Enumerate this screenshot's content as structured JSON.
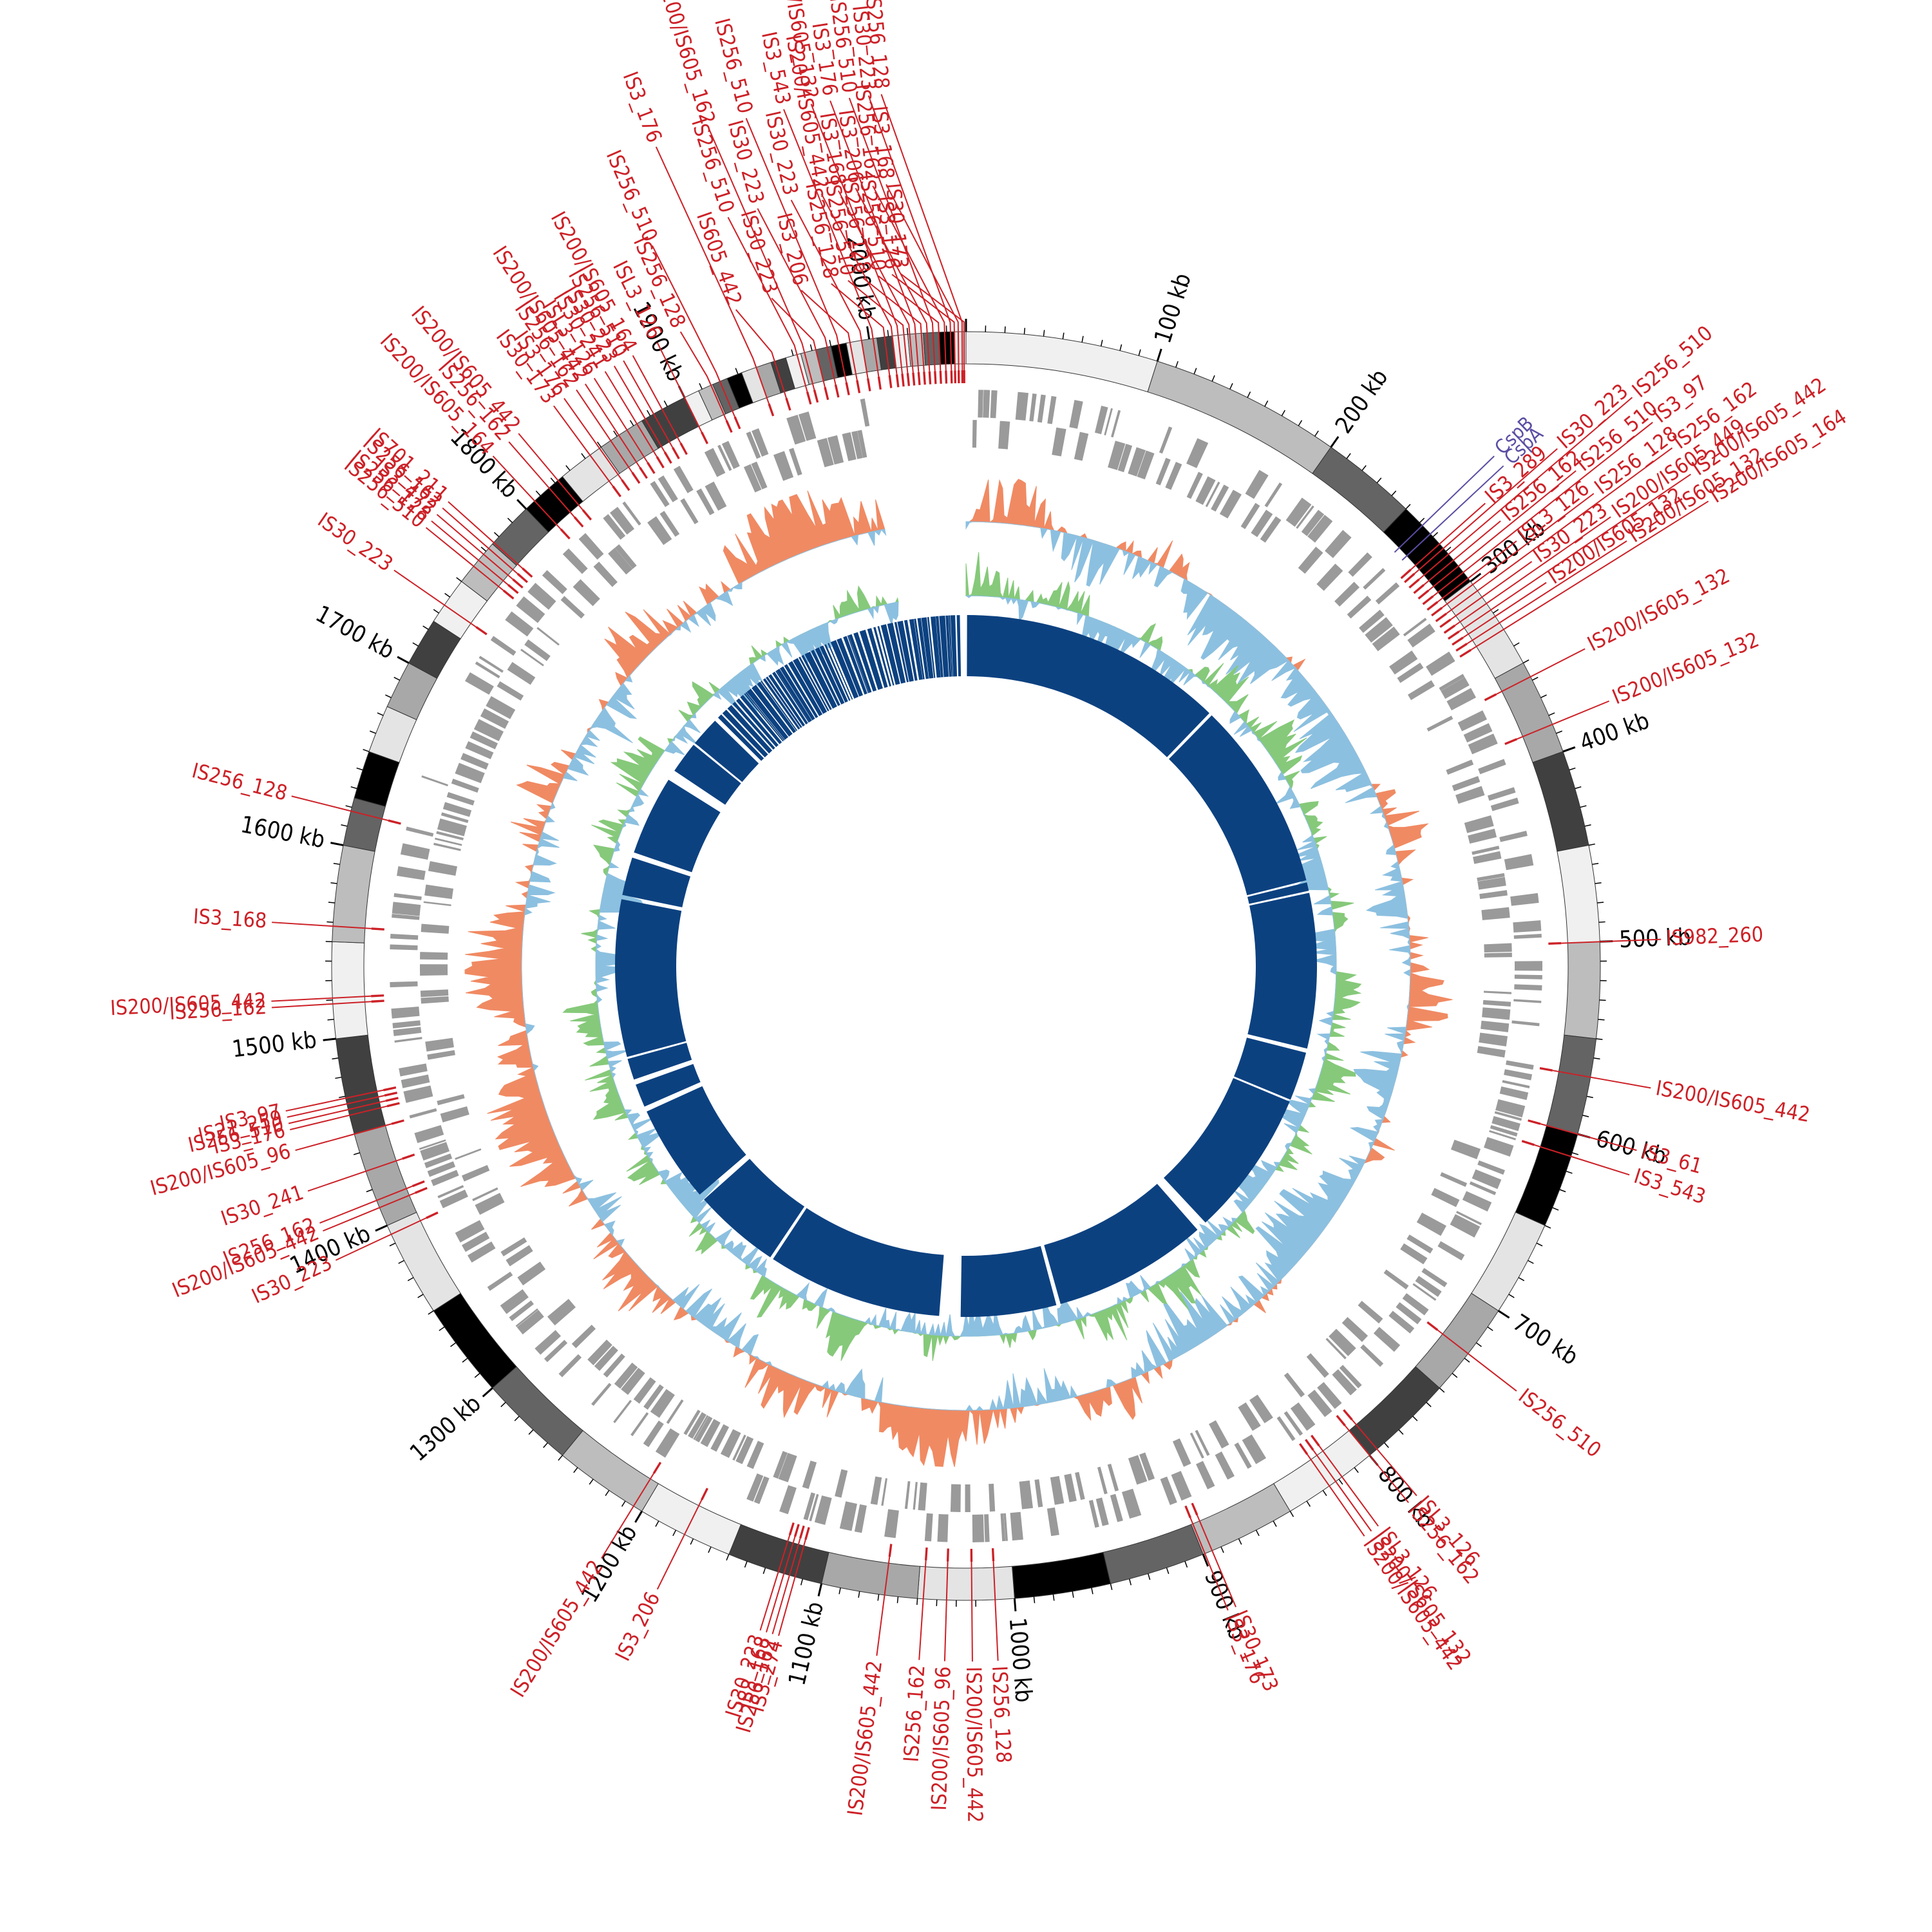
{
  "diagram": {
    "type": "circular-genome-map",
    "genome_length_kb": 2050,
    "colors": {
      "is_element": "#cc2127",
      "gene_label": "#5a4ea3",
      "cds_track": "#9a9a9a",
      "gc_skew_positive": "#f08a63",
      "gc_skew_negative": "#8cc0e0",
      "gc_content_positive": "#86c97a",
      "gc_content_negative": "#8cc0e0",
      "inner_blocks": "#0c4180",
      "karyotype_shades": [
        "#f0f0f0",
        "#bdbdbd",
        "#646464",
        "#000000",
        "#e4e4e4",
        "#a8a8a8",
        "#404040"
      ]
    },
    "ticks": [
      {
        "kb": 100,
        "label": "100 kb"
      },
      {
        "kb": 200,
        "label": "200 kb"
      },
      {
        "kb": 300,
        "label": "300 kb"
      },
      {
        "kb": 400,
        "label": "400 kb"
      },
      {
        "kb": 500,
        "label": "500 kb"
      },
      {
        "kb": 600,
        "label": "600 kb"
      },
      {
        "kb": 700,
        "label": "700 kb"
      },
      {
        "kb": 800,
        "label": "800 kb"
      },
      {
        "kb": 900,
        "label": "900 kb"
      },
      {
        "kb": 1000,
        "label": "1000 kb"
      },
      {
        "kb": 1100,
        "label": "1100 kb"
      },
      {
        "kb": 1200,
        "label": "1200 kb"
      },
      {
        "kb": 1300,
        "label": "1300 kb"
      },
      {
        "kb": 1400,
        "label": "1400 kb"
      },
      {
        "kb": 1500,
        "label": "1500 kb"
      },
      {
        "kb": 1600,
        "label": "1600 kb"
      },
      {
        "kb": 1700,
        "label": "1700 kb"
      },
      {
        "kb": 1800,
        "label": "1800 kb"
      },
      {
        "kb": 1900,
        "label": "1900 kb"
      },
      {
        "kb": 2000,
        "label": "2000 kb"
      }
    ],
    "gene_labels": [
      {
        "kb": 262,
        "label": "CspB"
      },
      {
        "kb": 268,
        "label": "CspA"
      }
    ],
    "is_elements": [
      {
        "kb": 275,
        "label": "IS3_289"
      },
      {
        "kb": 278,
        "label": "IS30_223"
      },
      {
        "kb": 282,
        "label": "IS256_510"
      },
      {
        "kb": 286,
        "label": "IS256_162"
      },
      {
        "kb": 290,
        "label": "IS256_510"
      },
      {
        "kb": 294,
        "label": "IS3_97"
      },
      {
        "kb": 298,
        "label": "ISL3_126"
      },
      {
        "kb": 302,
        "label": "IS256_128"
      },
      {
        "kb": 306,
        "label": "IS256_162"
      },
      {
        "kb": 310,
        "label": "IS30_223"
      },
      {
        "kb": 314,
        "label": "IS200/IS605_449"
      },
      {
        "kb": 318,
        "label": "IS200/IS605_442"
      },
      {
        "kb": 322,
        "label": "IS200/IS605_132"
      },
      {
        "kb": 326,
        "label": "IS200/IS605_132"
      },
      {
        "kb": 330,
        "label": "IS200/IS605_164"
      },
      {
        "kb": 358,
        "label": "IS200/IS605_132"
      },
      {
        "kb": 385,
        "label": "IS200/IS605_132"
      },
      {
        "kb": 500,
        "label": "IS982_260"
      },
      {
        "kb": 570,
        "label": "IS200/IS605_442"
      },
      {
        "kb": 600,
        "label": "IS3_61"
      },
      {
        "kb": 612,
        "label": "IS3_543"
      },
      {
        "kb": 727,
        "label": "IS256_510"
      },
      {
        "kb": 795,
        "label": "ISL3_126"
      },
      {
        "kb": 800,
        "label": "IS256_162"
      },
      {
        "kb": 818,
        "label": "ISL3_126"
      },
      {
        "kb": 822,
        "label": "IS200/IS605_132"
      },
      {
        "kb": 826,
        "label": "IS200/IS605_442"
      },
      {
        "kb": 895,
        "label": "IS30_173"
      },
      {
        "kb": 899,
        "label": "IS3_176"
      },
      {
        "kb": 1010,
        "label": "IS256_128"
      },
      {
        "kb": 1022,
        "label": "IS200/IS605_442"
      },
      {
        "kb": 1035,
        "label": "IS200/IS605_96"
      },
      {
        "kb": 1047,
        "label": "IS256_162"
      },
      {
        "kb": 1067,
        "label": "IS200/IS605_442"
      },
      {
        "kb": 1114,
        "label": "IS3_274"
      },
      {
        "kb": 1117,
        "label": "IS256_162"
      },
      {
        "kb": 1120,
        "label": "IS3_168"
      },
      {
        "kb": 1123,
        "label": "IS30_223"
      },
      {
        "kb": 1175,
        "label": "IS3_206"
      },
      {
        "kb": 1205,
        "label": "IS200/IS605_442"
      },
      {
        "kb": 1395,
        "label": "IS30_223"
      },
      {
        "kb": 1410,
        "label": "IS200/IS605_442"
      },
      {
        "kb": 1414,
        "label": "IS256_162"
      },
      {
        "kb": 1430,
        "label": "IS30_241"
      },
      {
        "kb": 1450,
        "label": "IS200/IS605_96"
      },
      {
        "kb": 1460,
        "label": "IS3_176"
      },
      {
        "kb": 1463,
        "label": "IS256_510"
      },
      {
        "kb": 1466,
        "label": "IS21_259"
      },
      {
        "kb": 1469,
        "label": "IS3_97"
      },
      {
        "kb": 1518,
        "label": "IS256_162"
      },
      {
        "kb": 1521,
        "label": "IS200/IS605_442"
      },
      {
        "kb": 1558,
        "label": "IS3_168"
      },
      {
        "kb": 1618,
        "label": "IS256_128"
      },
      {
        "kb": 1735,
        "label": "IS30_223"
      },
      {
        "kb": 1760,
        "label": "IS256_510"
      },
      {
        "kb": 1764,
        "label": "IS256_128"
      },
      {
        "kb": 1768,
        "label": "IS3_472"
      },
      {
        "kb": 1772,
        "label": "IS256_162"
      },
      {
        "kb": 1776,
        "label": "IS701_211"
      },
      {
        "kb": 1806,
        "label": "IS200/IS605_164"
      },
      {
        "kb": 1816,
        "label": "IS256_162"
      },
      {
        "kb": 1822,
        "label": "IS200/IS605_442"
      },
      {
        "kb": 1843,
        "label": "IS30_173"
      },
      {
        "kb": 1849,
        "label": "IS3_176"
      },
      {
        "kb": 1856,
        "label": "IS256_162"
      },
      {
        "kb": 1861,
        "label": "IS200/IS605_442"
      },
      {
        "kb": 1866,
        "label": "ISL3_126"
      },
      {
        "kb": 1872,
        "label": "IS30_241"
      },
      {
        "kb": 1877,
        "label": "IS30_223"
      },
      {
        "kb": 1882,
        "label": "IS256_510"
      },
      {
        "kb": 1887,
        "label": "IS200/IS605_164"
      },
      {
        "kb": 1900,
        "label": "ISL3_126"
      },
      {
        "kb": 1915,
        "label": "IS256_128"
      },
      {
        "kb": 1920,
        "label": "IS256_510"
      },
      {
        "kb": 1940,
        "label": "IS3_176"
      },
      {
        "kb": 1950,
        "label": "IS605_442"
      },
      {
        "kb": 1962,
        "label": "IS256_510"
      },
      {
        "kb": 1966,
        "label": "IS200/IS605_162"
      },
      {
        "kb": 1972,
        "label": "IS30_223"
      },
      {
        "kb": 1978,
        "label": "IS30_223"
      },
      {
        "kb": 1984,
        "label": "IS256_510"
      },
      {
        "kb": 1990,
        "label": "IS3_206"
      },
      {
        "kb": 1996,
        "label": "IS30_223"
      },
      {
        "kb": 2002,
        "label": "IS3_543"
      },
      {
        "kb": 2008,
        "label": "IS256_128"
      },
      {
        "kb": 2012,
        "label": "IS200/IS605_442"
      },
      {
        "kb": 2015,
        "label": "IS200/IS605_132"
      },
      {
        "kb": 2018,
        "label": "IS256_510"
      },
      {
        "kb": 2021,
        "label": "IS3_168"
      },
      {
        "kb": 2024,
        "label": "IS3_176"
      },
      {
        "kb": 2027,
        "label": "IS256_128"
      },
      {
        "kb": 2030,
        "label": "IS3_206"
      },
      {
        "kb": 2033,
        "label": "IS256_510"
      },
      {
        "kb": 2036,
        "label": "IS256_510"
      },
      {
        "kb": 2039,
        "label": "IS256_162"
      },
      {
        "kb": 2042,
        "label": "IS30_223"
      },
      {
        "kb": 2044,
        "label": "IS3_176"
      },
      {
        "kb": 2046,
        "label": "IS3_168"
      },
      {
        "kb": 2048,
        "label": "IS256_128"
      },
      {
        "kb": 2049,
        "label": "IS30_173"
      }
    ]
  }
}
